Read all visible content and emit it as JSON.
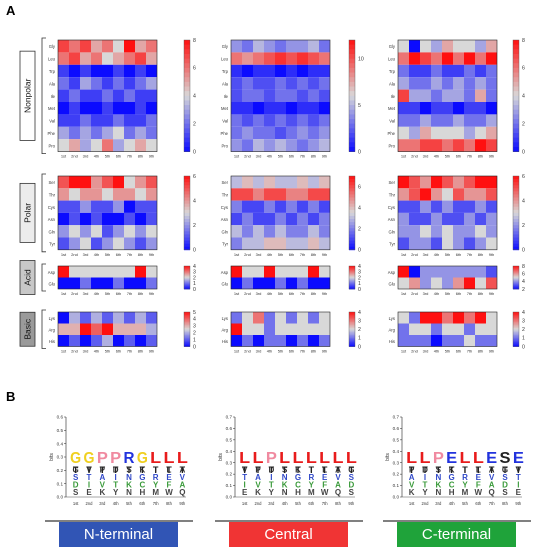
{
  "panel_a_label": "A",
  "panel_b_label": "B",
  "positions": [
    "1st",
    "2nd",
    "3rd",
    "4th",
    "5th",
    "6th",
    "7th",
    "8th",
    "9th"
  ],
  "groups": [
    {
      "label": "Nonpolar",
      "label_bg": "#ffffff",
      "residues": [
        "Gly",
        "Leu",
        "Trp",
        "Ala",
        "Ile",
        "Met",
        "Val",
        "Phe",
        "Pro"
      ]
    },
    {
      "label": "Polar",
      "label_bg": "#ececec",
      "residues": [
        "Ser",
        "Thr",
        "Cys",
        "Asn",
        "Gln",
        "Tyr"
      ]
    },
    {
      "label": "Acid",
      "label_bg": "#c8c8c8",
      "residues": [
        "Asp",
        "Glu"
      ]
    },
    {
      "label": "Basic",
      "label_bg": "#9a9a9a",
      "residues": [
        "Lys",
        "Arg",
        "His"
      ]
    }
  ],
  "colors": {
    "low": "#0b0bff",
    "mid": "#d8d8d8",
    "high": "#ff1010",
    "ntermBox": "#3155b5",
    "centralBox": "#f03434",
    "ctermBox": "#1fa33a"
  },
  "chart_data": [
    {
      "type": "heatmap",
      "title": "N-terminal",
      "x": [
        "1st",
        "2nd",
        "3rd",
        "4th",
        "5th",
        "6th",
        "7th",
        "8th",
        "9th"
      ],
      "blocks": [
        {
          "rows": [
            "Gly",
            "Leu",
            "Trp",
            "Ala",
            "Ile",
            "Met",
            "Val",
            "Phe",
            "Pro"
          ],
          "colorbar_ticks": [
            0,
            2,
            4,
            6,
            8
          ],
          "range": [
            0,
            8
          ],
          "values": [
            [
              7,
              6,
              7,
              5,
              6,
              4,
              8,
              5,
              6
            ],
            [
              6,
              7,
              5,
              6,
              4,
              5,
              6,
              7,
              5
            ],
            [
              1,
              0,
              1,
              0,
              0,
              1,
              0,
              1,
              0
            ],
            [
              2,
              1,
              3,
              2,
              1,
              2,
              1,
              2,
              3
            ],
            [
              1,
              2,
              1,
              1,
              2,
              1,
              2,
              1,
              1
            ],
            [
              0,
              1,
              0,
              0,
              1,
              0,
              0,
              1,
              0
            ],
            [
              1,
              1,
              2,
              1,
              1,
              2,
              1,
              1,
              2
            ],
            [
              3,
              2,
              3,
              2,
              3,
              4,
              2,
              3,
              2
            ],
            [
              4,
              5,
              3,
              4,
              6,
              3,
              4,
              5,
              4
            ]
          ]
        },
        {
          "rows": [
            "Ser",
            "Thr",
            "Cys",
            "Asn",
            "Gln",
            "Tyr"
          ],
          "colorbar_ticks": [
            0,
            2,
            4,
            6
          ],
          "range": [
            0,
            6
          ],
          "values": [
            [
              5,
              6,
              6,
              4,
              5,
              6,
              3,
              4,
              5
            ],
            [
              4,
              3,
              4,
              4,
              3,
              4,
              4,
              3,
              4
            ],
            [
              1,
              1,
              2,
              1,
              1,
              2,
              0,
              1,
              1
            ],
            [
              0,
              1,
              0,
              1,
              0,
              0,
              1,
              0,
              1
            ],
            [
              2,
              3,
              2,
              3,
              1,
              2,
              3,
              2,
              3
            ],
            [
              1,
              2,
              3,
              1,
              2,
              3,
              2,
              1,
              2
            ]
          ]
        },
        {
          "rows": [
            "Asp",
            "Glu"
          ],
          "colorbar_ticks": [
            0,
            1,
            2,
            3,
            4
          ],
          "range": [
            0,
            4
          ],
          "values": [
            [
              4,
              2,
              2,
              2,
              2,
              2,
              2,
              4,
              2
            ],
            [
              0,
              0,
              1,
              0,
              0,
              1,
              0,
              0,
              1
            ]
          ]
        },
        {
          "rows": [
            "Lys",
            "Arg",
            "His"
          ],
          "colorbar_ticks": [
            0,
            1,
            2,
            3,
            4,
            5
          ],
          "range": [
            0,
            5
          ],
          "values": [
            [
              0,
              2,
              1,
              2,
              1,
              2,
              1,
              2,
              1
            ],
            [
              3,
              3,
              5,
              4,
              5,
              3,
              3,
              3,
              2
            ],
            [
              0,
              1,
              0,
              1,
              2,
              0,
              1,
              0,
              1
            ]
          ]
        }
      ]
    },
    {
      "type": "heatmap",
      "title": "Central",
      "x": [
        "1st",
        "2nd",
        "3rd",
        "4th",
        "5th",
        "6th",
        "7th",
        "8th",
        "9th"
      ],
      "blocks": [
        {
          "rows": [
            "Gly",
            "Leu",
            "Trp",
            "Ala",
            "Ile",
            "Met",
            "Val",
            "Phe",
            "Pro"
          ],
          "colorbar_ticks": [
            0,
            5,
            10
          ],
          "range": [
            0,
            12
          ],
          "values": [
            [
              4,
              3,
              5,
              4,
              3,
              4,
              4,
              5,
              3
            ],
            [
              9,
              8,
              9,
              10,
              11,
              10,
              11,
              10,
              9
            ],
            [
              1,
              0,
              1,
              1,
              0,
              1,
              0,
              1,
              1
            ],
            [
              2,
              3,
              2,
              2,
              3,
              2,
              3,
              2,
              3
            ],
            [
              2,
              3,
              3,
              2,
              3,
              3,
              2,
              3,
              2
            ],
            [
              1,
              1,
              0,
              1,
              1,
              0,
              1,
              1,
              0
            ],
            [
              3,
              2,
              3,
              2,
              3,
              2,
              3,
              2,
              3
            ],
            [
              3,
              4,
              3,
              3,
              2,
              3,
              4,
              3,
              4
            ],
            [
              4,
              3,
              5,
              4,
              5,
              4,
              3,
              4,
              5
            ]
          ]
        },
        {
          "rows": [
            "Ser",
            "Thr",
            "Cys",
            "Asn",
            "Gln",
            "Tyr"
          ],
          "colorbar_ticks": [
            0,
            2,
            4,
            6
          ],
          "range": [
            0,
            7
          ],
          "values": [
            [
              3,
              4,
              3,
              4,
              3,
              3,
              4,
              3,
              4
            ],
            [
              6,
              6,
              5,
              6,
              6,
              5,
              5,
              6,
              6
            ],
            [
              2,
              1,
              1,
              2,
              1,
              2,
              1,
              2,
              1
            ],
            [
              1,
              2,
              1,
              1,
              2,
              1,
              2,
              1,
              2
            ],
            [
              3,
              2,
              3,
              2,
              3,
              2,
              2,
              3,
              2
            ],
            [
              2,
              3,
              3,
              4,
              4,
              3,
              3,
              4,
              3
            ]
          ]
        },
        {
          "rows": [
            "Asp",
            "Glu"
          ],
          "colorbar_ticks": [
            0,
            1,
            2,
            3,
            4
          ],
          "range": [
            0,
            4
          ],
          "values": [
            [
              4,
              2,
              2,
              4,
              2,
              2,
              2,
              4,
              2
            ],
            [
              0,
              1,
              0,
              0,
              1,
              0,
              1,
              0,
              0
            ]
          ]
        },
        {
          "rows": [
            "Lys",
            "Arg",
            "His"
          ],
          "colorbar_ticks": [
            0,
            1,
            2,
            3,
            4
          ],
          "range": [
            0,
            4
          ],
          "values": [
            [
              1,
              2,
              3,
              1,
              2,
              1,
              2,
              1,
              2
            ],
            [
              4,
              2,
              2,
              1,
              2,
              2,
              2,
              2,
              2
            ],
            [
              0,
              1,
              0,
              1,
              1,
              0,
              1,
              0,
              1
            ]
          ]
        }
      ]
    },
    {
      "type": "heatmap",
      "title": "C-terminal",
      "x": [
        "1st",
        "2nd",
        "3rd",
        "4th",
        "5th",
        "6th",
        "7th",
        "8th",
        "9th"
      ],
      "blocks": [
        {
          "rows": [
            "Gly",
            "Leu",
            "Trp",
            "Ala",
            "Ile",
            "Met",
            "Val",
            "Phe",
            "Pro"
          ],
          "colorbar_ticks": [
            0,
            2,
            4,
            6,
            8
          ],
          "range": [
            0,
            8
          ],
          "values": [
            [
              4,
              0,
              4,
              3,
              5,
              4,
              4,
              3,
              5
            ],
            [
              6,
              8,
              7,
              6,
              8,
              6,
              8,
              6,
              8
            ],
            [
              2,
              1,
              1,
              2,
              1,
              1,
              2,
              1,
              2
            ],
            [
              3,
              2,
              2,
              3,
              2,
              3,
              2,
              3,
              2
            ],
            [
              7,
              3,
              3,
              2,
              3,
              3,
              2,
              5,
              2
            ],
            [
              1,
              1,
              0,
              1,
              1,
              0,
              1,
              1,
              0
            ],
            [
              2,
              2,
              3,
              2,
              2,
              3,
              2,
              2,
              3
            ],
            [
              4,
              3,
              5,
              4,
              4,
              4,
              3,
              4,
              5
            ],
            [
              6,
              6,
              7,
              7,
              6,
              7,
              6,
              8,
              7
            ]
          ]
        },
        {
          "rows": [
            "Ser",
            "Thr",
            "Cys",
            "Asn",
            "Gln",
            "Tyr"
          ],
          "colorbar_ticks": [
            0,
            2,
            4,
            6
          ],
          "range": [
            0,
            6
          ],
          "values": [
            [
              6,
              5,
              4,
              6,
              5,
              4,
              5,
              6,
              6
            ],
            [
              4,
              5,
              6,
              4,
              3,
              5,
              4,
              4,
              5
            ],
            [
              1,
              1,
              2,
              1,
              2,
              1,
              1,
              2,
              1
            ],
            [
              2,
              1,
              1,
              2,
              1,
              1,
              2,
              1,
              2
            ],
            [
              2,
              2,
              3,
              2,
              3,
              2,
              2,
              3,
              2
            ],
            [
              1,
              2,
              2,
              1,
              3,
              2,
              1,
              2,
              3
            ]
          ]
        },
        {
          "rows": [
            "Asp",
            "Glu"
          ],
          "colorbar_ticks": [
            2,
            4,
            6,
            8
          ],
          "range": [
            2,
            8
          ],
          "values": [
            [
              8,
              2,
              4,
              4,
              4,
              4,
              4,
              4,
              3
            ],
            [
              5,
              6,
              4,
              5,
              4,
              6,
              8,
              5,
              7
            ]
          ]
        },
        {
          "rows": [
            "Lys",
            "Arg",
            "His"
          ],
          "colorbar_ticks": [
            0,
            1,
            2,
            3,
            4
          ],
          "range": [
            0,
            4
          ],
          "values": [
            [
              2,
              1,
              4,
              4,
              3,
              4,
              3,
              4,
              2
            ],
            [
              1,
              2,
              2,
              1,
              2,
              2,
              1,
              2,
              2
            ],
            [
              1,
              1,
              1,
              0,
              1,
              1,
              2,
              1,
              1
            ]
          ]
        }
      ]
    },
    {
      "type": "sequence-logo",
      "title": "N-terminal",
      "ylabel": "bits",
      "yticks": [
        0.0,
        0.1,
        0.2,
        0.3,
        0.4,
        0.5,
        0.6
      ],
      "ylim": [
        0,
        0.6
      ],
      "x": [
        "1st",
        "2nd",
        "3rd",
        "4th",
        "5th",
        "6th",
        "7th",
        "8th",
        "9th"
      ],
      "top_letters": [
        "G",
        "G",
        "P",
        "P",
        "R",
        "G",
        "L",
        "L",
        "L"
      ],
      "top_heights": [
        0.52,
        0.5,
        0.5,
        0.55,
        0.48,
        0.45,
        0.42,
        0.42,
        0.4
      ]
    },
    {
      "type": "sequence-logo",
      "title": "Central",
      "ylabel": "bits",
      "yticks": [
        0.0,
        0.1,
        0.2,
        0.3,
        0.4,
        0.5,
        0.6,
        0.7
      ],
      "ylim": [
        0,
        0.7
      ],
      "x": [
        "1st",
        "2nd",
        "3rd",
        "4th",
        "5th",
        "6th",
        "7th",
        "8th",
        "9th"
      ],
      "top_letters": [
        "L",
        "L",
        "P",
        "L",
        "L",
        "L",
        "L",
        "L",
        "L"
      ],
      "top_heights": [
        0.5,
        0.45,
        0.68,
        0.52,
        0.55,
        0.58,
        0.6,
        0.5,
        0.45
      ]
    },
    {
      "type": "sequence-logo",
      "title": "C-terminal",
      "ylabel": "bits",
      "yticks": [
        0.0,
        0.1,
        0.2,
        0.3,
        0.4,
        0.5,
        0.6,
        0.7
      ],
      "ylim": [
        0,
        0.7
      ],
      "x": [
        "1st",
        "2nd",
        "3rd",
        "4th",
        "5th",
        "6th",
        "7th",
        "8th",
        "9th"
      ],
      "top_letters": [
        "L",
        "L",
        "P",
        "E",
        "L",
        "L",
        "E",
        "S",
        "E"
      ],
      "top_heights": [
        0.45,
        0.68,
        0.64,
        0.5,
        0.45,
        0.42,
        0.42,
        0.5,
        0.65
      ]
    }
  ]
}
